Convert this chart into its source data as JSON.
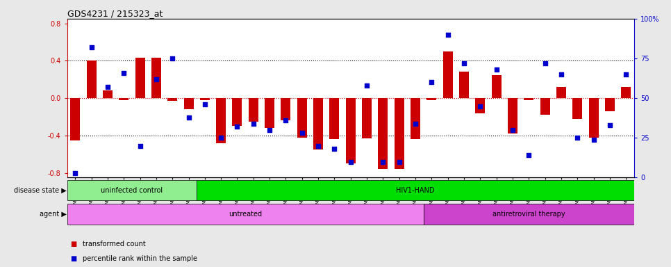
{
  "title": "GDS4231 / 215323_at",
  "samples": [
    "GSM697483",
    "GSM697484",
    "GSM697485",
    "GSM697486",
    "GSM697487",
    "GSM697488",
    "GSM697489",
    "GSM697490",
    "GSM697491",
    "GSM697492",
    "GSM697493",
    "GSM697494",
    "GSM697495",
    "GSM697496",
    "GSM697497",
    "GSM697498",
    "GSM697499",
    "GSM697500",
    "GSM697501",
    "GSM697502",
    "GSM697503",
    "GSM697504",
    "GSM697505",
    "GSM697506",
    "GSM697507",
    "GSM697508",
    "GSM697509",
    "GSM697510",
    "GSM697511",
    "GSM697512",
    "GSM697513",
    "GSM697514",
    "GSM697515",
    "GSM697516",
    "GSM697517"
  ],
  "bar_values": [
    -0.45,
    0.4,
    0.08,
    -0.02,
    0.43,
    0.43,
    -0.03,
    -0.12,
    -0.02,
    -0.48,
    -0.3,
    -0.25,
    -0.32,
    -0.24,
    -0.42,
    -0.55,
    -0.44,
    -0.7,
    -0.43,
    -0.76,
    -0.76,
    -0.44,
    -0.02,
    0.5,
    0.28,
    -0.16,
    0.25,
    -0.38,
    -0.02,
    -0.18,
    0.12,
    -0.22,
    -0.42,
    -0.14,
    0.12
  ],
  "percentile_values": [
    3,
    82,
    57,
    66,
    20,
    62,
    75,
    38,
    46,
    25,
    32,
    34,
    30,
    36,
    28,
    20,
    18,
    10,
    58,
    10,
    10,
    34,
    60,
    90,
    72,
    45,
    68,
    30,
    14,
    72,
    65,
    25,
    24,
    33,
    65
  ],
  "bar_color": "#cc0000",
  "dot_color": "#0000cc",
  "zero_line_color": "#cc0000",
  "ylim_left": [
    -0.85,
    0.85
  ],
  "ylim_right": [
    0,
    100
  ],
  "yticks_left": [
    -0.8,
    -0.4,
    0.0,
    0.4,
    0.8
  ],
  "yticks_right": [
    0,
    25,
    50,
    75,
    100
  ],
  "ytick_labels_right": [
    "0",
    "25",
    "50",
    "75",
    "100%"
  ],
  "disease_groups": [
    {
      "label": "uninfected control",
      "start": 0,
      "end": 8,
      "color": "#90ee90"
    },
    {
      "label": "HIV1-HAND",
      "start": 8,
      "end": 35,
      "color": "#00dd00"
    }
  ],
  "agent_groups": [
    {
      "label": "untreated",
      "start": 0,
      "end": 22,
      "color": "#ee82ee"
    },
    {
      "label": "antiretroviral therapy",
      "start": 22,
      "end": 35,
      "color": "#cc44cc"
    }
  ],
  "disease_state_label": "disease state",
  "agent_label": "agent",
  "legend_bar_label": "transformed count",
  "legend_dot_label": "percentile rank within the sample",
  "background_color": "#e8e8e8",
  "plot_bg_color": "#ffffff"
}
